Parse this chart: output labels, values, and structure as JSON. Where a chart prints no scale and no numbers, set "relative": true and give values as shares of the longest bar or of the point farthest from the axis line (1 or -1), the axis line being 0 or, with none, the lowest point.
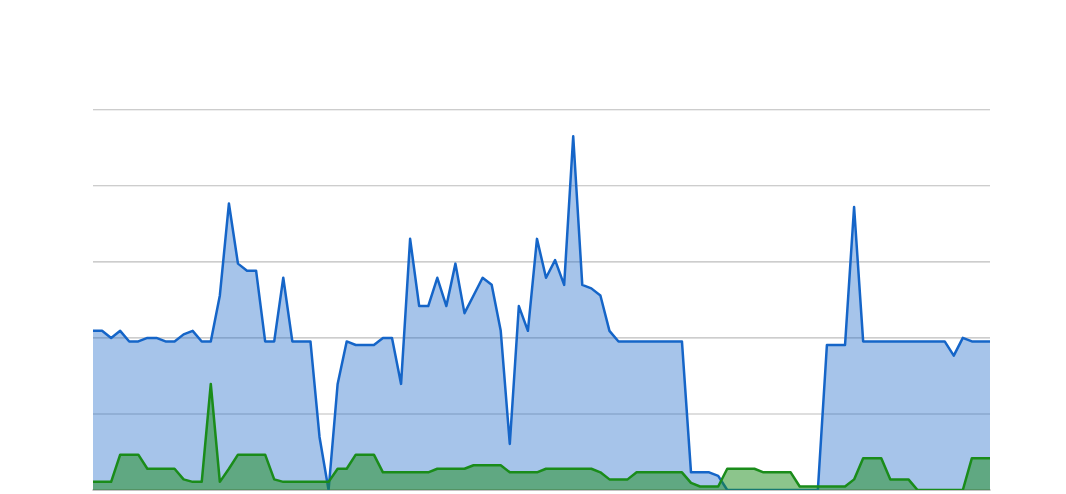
{
  "chart_data": {
    "type": "area",
    "relative": true,
    "grid": "y",
    "legend": false,
    "categories": [
      null,
      null,
      null,
      null,
      null,
      null,
      null,
      null,
      null,
      null,
      null,
      null,
      null,
      null,
      null,
      null,
      null,
      null,
      null,
      null,
      null,
      null,
      null,
      null,
      null,
      null,
      null,
      null,
      null,
      null,
      null,
      null,
      null,
      null,
      null,
      null,
      null,
      null,
      null,
      null,
      null,
      null,
      null,
      null,
      null,
      null,
      null,
      null,
      null,
      null,
      null,
      null,
      null,
      null,
      null,
      null,
      null,
      null,
      null,
      null,
      null,
      null,
      null,
      null,
      null,
      null,
      null,
      null,
      null,
      null,
      null,
      null,
      null,
      null,
      null,
      null,
      null,
      null,
      null,
      null,
      null,
      null,
      null,
      null,
      null,
      null,
      null,
      null,
      null,
      null,
      null,
      null,
      null,
      null,
      null,
      null,
      null,
      null,
      null,
      null
    ],
    "series": [
      {
        "color": "#1565c8",
        "values": [
          0.45,
          0.45,
          0.43,
          0.45,
          0.42,
          0.42,
          0.43,
          0.43,
          0.42,
          0.42,
          0.44,
          0.45,
          0.42,
          0.42,
          0.55,
          0.81,
          0.64,
          0.62,
          0.62,
          0.42,
          0.42,
          0.6,
          0.42,
          0.42,
          0.42,
          0.15,
          0,
          0.3,
          0.42,
          0.41,
          0.41,
          0.41,
          0.43,
          0.43,
          0.3,
          0.71,
          0.52,
          0.52,
          0.6,
          0.52,
          0.64,
          0.5,
          0.55,
          0.6,
          0.58,
          0.45,
          0.13,
          0.52,
          0.45,
          0.71,
          0.6,
          0.65,
          0.58,
          1.0,
          0.58,
          0.57,
          0.55,
          0.45,
          0.42,
          0.42,
          0.42,
          0.42,
          0.42,
          0.42,
          0.42,
          0.42,
          0.05,
          0.05,
          0.05,
          0.04,
          0,
          0,
          0,
          0,
          0,
          0,
          0,
          0,
          0,
          0,
          0,
          0.41,
          0.41,
          0.41,
          0.8,
          0.42,
          0.42,
          0.42,
          0.42,
          0.42,
          0.42,
          0.42,
          0.42,
          0.42,
          0.42,
          0.38,
          0.43,
          0.42,
          0.42,
          0.42
        ]
      },
      {
        "color": "#1a8c1a",
        "values": [
          0.023,
          0.023,
          0.023,
          0.1,
          0.1,
          0.1,
          0.06,
          0.06,
          0.06,
          0.06,
          0.03,
          0.023,
          0.023,
          0.3,
          0.023,
          0.06,
          0.1,
          0.1,
          0.1,
          0.1,
          0.03,
          0.023,
          0.023,
          0.023,
          0.023,
          0.023,
          0.023,
          0.06,
          0.06,
          0.1,
          0.1,
          0.1,
          0.05,
          0.05,
          0.05,
          0.05,
          0.05,
          0.05,
          0.06,
          0.06,
          0.06,
          0.06,
          0.07,
          0.07,
          0.07,
          0.07,
          0.05,
          0.05,
          0.05,
          0.05,
          0.06,
          0.06,
          0.06,
          0.06,
          0.06,
          0.06,
          0.05,
          0.03,
          0.03,
          0.03,
          0.05,
          0.05,
          0.05,
          0.05,
          0.05,
          0.05,
          0.02,
          0.01,
          0.01,
          0.01,
          0.06,
          0.06,
          0.06,
          0.06,
          0.05,
          0.05,
          0.05,
          0.05,
          0.01,
          0.01,
          0.01,
          0.01,
          0.01,
          0.01,
          0.03,
          0.09,
          0.09,
          0.09,
          0.03,
          0.03,
          0.03,
          0,
          0,
          0,
          0,
          0,
          0,
          0.09,
          0.09,
          0.09
        ]
      }
    ]
  }
}
